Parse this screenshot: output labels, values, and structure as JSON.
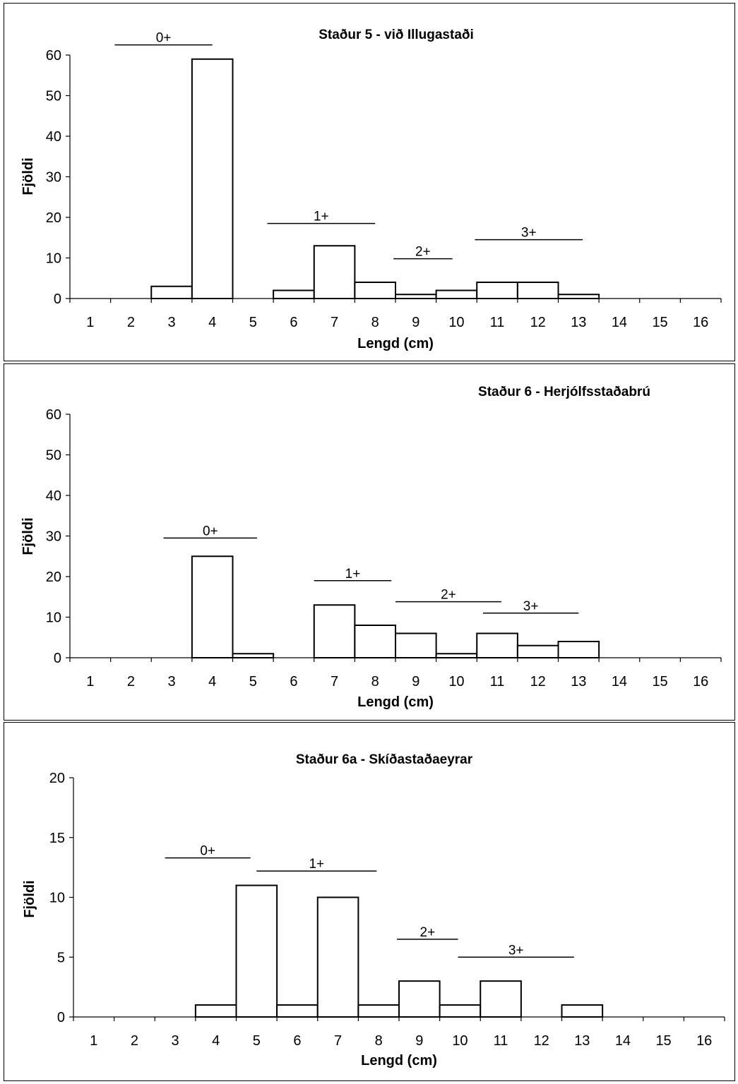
{
  "chart_data": [
    {
      "type": "bar",
      "title": "Staður 5 - við Illugastaði",
      "xlabel": "Lengd (cm)",
      "ylabel": "Fjöldi",
      "categories": [
        "1",
        "2",
        "3",
        "4",
        "5",
        "6",
        "7",
        "8",
        "9",
        "10",
        "11",
        "12",
        "13",
        "14",
        "15",
        "16"
      ],
      "values": [
        0,
        0,
        3,
        59,
        0,
        2,
        13,
        4,
        1,
        2,
        4,
        4,
        1,
        0,
        0,
        0
      ],
      "ylim": [
        0,
        60
      ],
      "yticks": [
        "0",
        "10",
        "20",
        "30",
        "40",
        "50",
        "60"
      ],
      "age_groups": [
        {
          "label": "0+",
          "from": 1.6,
          "to": 4.0,
          "y": 62.5
        },
        {
          "label": "1+",
          "from": 5.35,
          "to": 8.0,
          "y": 18.5
        },
        {
          "label": "2+",
          "from": 8.45,
          "to": 9.9,
          "y": 9.8
        },
        {
          "label": "3+",
          "from": 10.45,
          "to": 13.1,
          "y": 14.5
        }
      ]
    },
    {
      "type": "bar",
      "title": "Staður 6 - Herjólfsstaðabrú",
      "xlabel": "Lengd (cm)",
      "ylabel": "Fjöldi",
      "categories": [
        "1",
        "2",
        "3",
        "4",
        "5",
        "6",
        "7",
        "8",
        "9",
        "10",
        "11",
        "12",
        "13",
        "14",
        "15",
        "16"
      ],
      "values": [
        0,
        0,
        0,
        25,
        1,
        0,
        13,
        8,
        6,
        1,
        6,
        3,
        4,
        0,
        0,
        0
      ],
      "ylim": [
        0,
        60
      ],
      "yticks": [
        "0",
        "10",
        "20",
        "30",
        "40",
        "50",
        "60"
      ],
      "age_groups": [
        {
          "label": "0+",
          "from": 2.8,
          "to": 5.1,
          "y": 29.5
        },
        {
          "label": "1+",
          "from": 6.5,
          "to": 8.4,
          "y": 19.0
        },
        {
          "label": "2+",
          "from": 8.5,
          "to": 11.1,
          "y": 13.8
        },
        {
          "label": "3+",
          "from": 10.65,
          "to": 13.0,
          "y": 11.0
        }
      ]
    },
    {
      "type": "bar",
      "title": "Staður 6a - Skíðastaðaeyrar",
      "xlabel": "Lengd (cm)",
      "ylabel": "Fjöldi",
      "categories": [
        "1",
        "2",
        "3",
        "4",
        "5",
        "6",
        "7",
        "8",
        "9",
        "10",
        "11",
        "12",
        "13",
        "14",
        "15",
        "16"
      ],
      "values": [
        0,
        0,
        0,
        1,
        11,
        1,
        10,
        1,
        3,
        1,
        3,
        0,
        1,
        0,
        0,
        0
      ],
      "ylim": [
        0,
        20
      ],
      "yticks": [
        "0",
        "5",
        "10",
        "15",
        "20"
      ],
      "age_groups": [
        {
          "label": "0+",
          "from": 2.75,
          "to": 4.85,
          "y": 13.3
        },
        {
          "label": "1+",
          "from": 5.0,
          "to": 7.95,
          "y": 12.2
        },
        {
          "label": "2+",
          "from": 8.45,
          "to": 9.95,
          "y": 6.5
        },
        {
          "label": "3+",
          "from": 9.95,
          "to": 12.8,
          "y": 5.0
        }
      ]
    }
  ]
}
